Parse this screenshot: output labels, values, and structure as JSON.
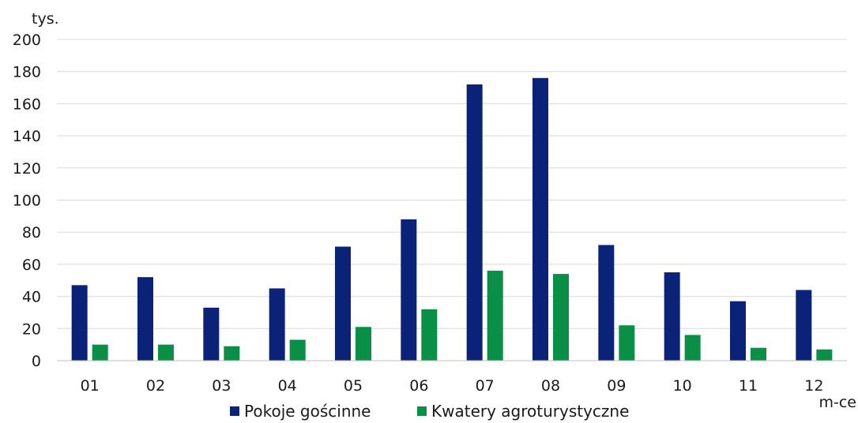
{
  "chart_data": {
    "type": "bar",
    "y_unit_label": "tys.",
    "x_unit_label": "m-ce",
    "categories": [
      "01",
      "02",
      "03",
      "04",
      "05",
      "06",
      "07",
      "08",
      "09",
      "10",
      "11",
      "12"
    ],
    "ylim": [
      0,
      200
    ],
    "yticks": [
      0,
      20,
      40,
      60,
      80,
      100,
      120,
      140,
      160,
      180,
      200
    ],
    "grid": true,
    "legend_position": "bottom",
    "series": [
      {
        "name": "Pokoje gościnne",
        "color": "#0b2279",
        "values": [
          47,
          52,
          33,
          45,
          71,
          88,
          172,
          176,
          72,
          55,
          37,
          44
        ]
      },
      {
        "name": "Kwatery agroturystyczne",
        "color": "#0a8f46",
        "values": [
          10,
          10,
          9,
          13,
          21,
          32,
          56,
          54,
          22,
          16,
          8,
          7
        ]
      }
    ]
  }
}
